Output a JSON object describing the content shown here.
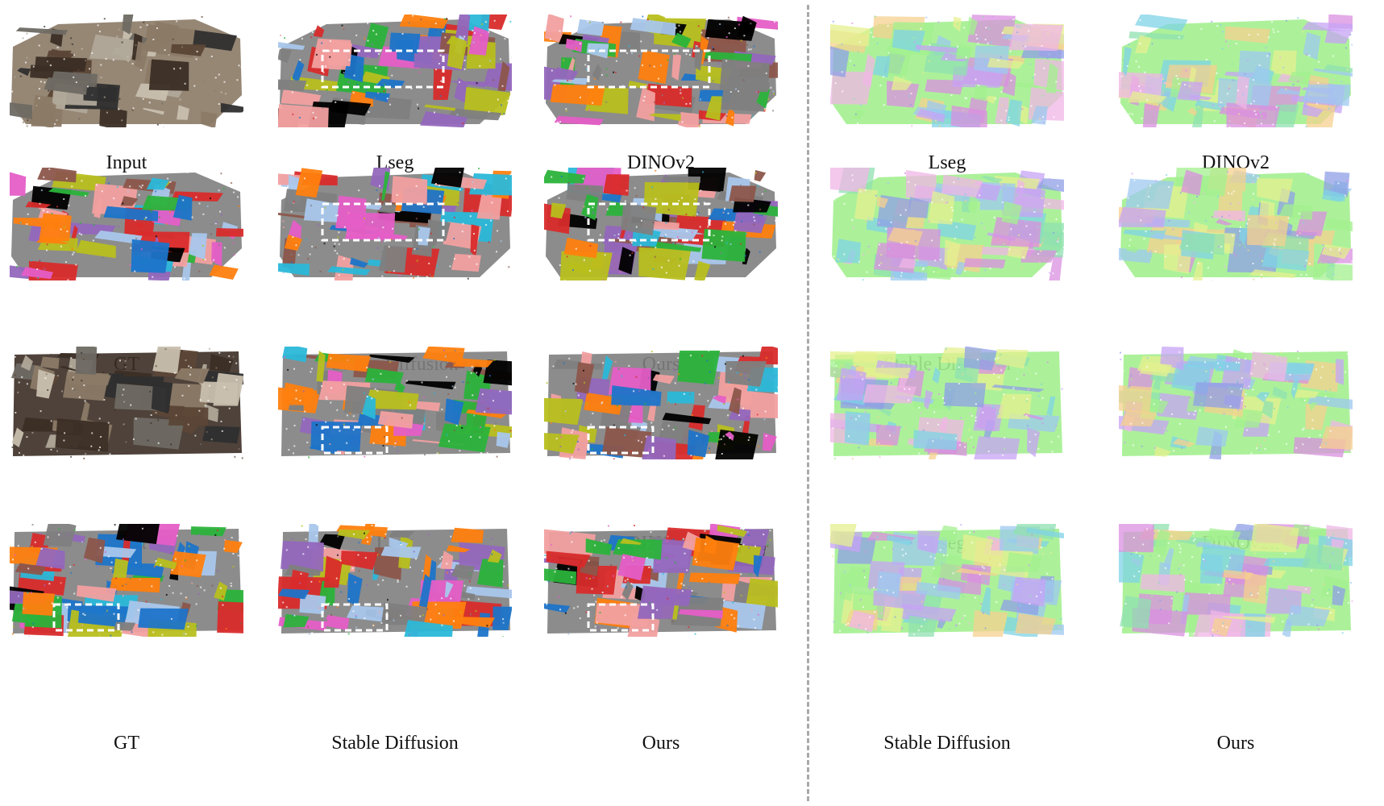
{
  "figure": {
    "left_panel": {
      "rows": [
        {
          "captions": [
            "Input",
            "Lseg",
            "DINOv2"
          ]
        },
        {
          "captions": [
            "GT",
            "Stable Diffusion",
            "Ours"
          ]
        },
        {
          "captions": [
            "Input",
            "Lseg",
            "DINOv2"
          ]
        },
        {
          "captions": [
            "GT",
            "Stable Diffusion",
            "Ours"
          ]
        }
      ]
    },
    "right_panel": {
      "rows": [
        {
          "captions": [
            "Lseg",
            "DINOv2"
          ]
        },
        {
          "captions": [
            "Stable Diffusion",
            "Ours"
          ]
        },
        {
          "captions": [
            "Lseg",
            "DINOv2"
          ]
        },
        {
          "captions": [
            "Stable Diffusion",
            "Ours"
          ]
        }
      ]
    },
    "segmentation_palette": [
      "#d92b2b",
      "#b8bf1e",
      "#1e74c9",
      "#7f7f7f",
      "#e55ec7",
      "#2bb33b",
      "#2bb8d9",
      "#ff7f0e",
      "#9467bd",
      "#8c564b",
      "#f2a0a0",
      "#a9c7ec",
      "#000000"
    ],
    "feature_palette": [
      "#8fe0b0",
      "#c7a3f5",
      "#f0b6e6",
      "#9ec8f0",
      "#a3f08f",
      "#f5d08f",
      "#7fd3e6",
      "#d98fe0",
      "#e6f08f",
      "#8f9fe6"
    ],
    "input_palette": [
      "#5b4636",
      "#8b7a66",
      "#3b2e25",
      "#c8bfae",
      "#6e6a63",
      "#2f2f2f",
      "#b0a899"
    ]
  }
}
